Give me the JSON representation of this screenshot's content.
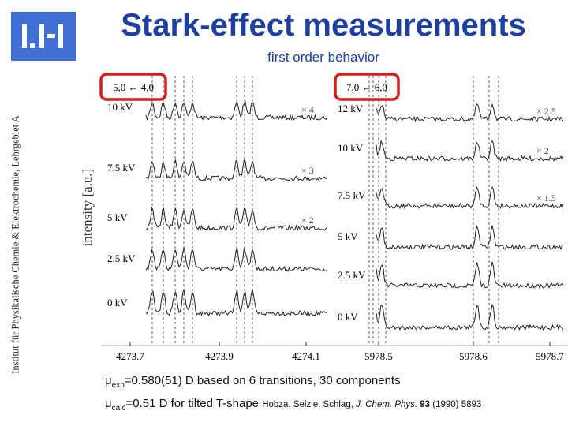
{
  "header": {
    "title": "Stark-effect measurements",
    "subtitle": "first order behavior"
  },
  "sidebar": "Institut für Physikalische Chemie & Elektrochemie, Lehrgebiet A",
  "figure": {
    "y_label": "intensity [a.u.]",
    "panels": [
      {
        "transition": "5,0 ← 4,0",
        "traces": [
          {
            "label": "10 kV",
            "scale": "× 4"
          },
          {
            "label": "7.5 kV",
            "scale": "× 3"
          },
          {
            "label": "5 kV",
            "scale": "× 2"
          },
          {
            "label": "2.5 kV"
          },
          {
            "label": "0 kV"
          }
        ],
        "x_ticks": [
          "4273.7",
          "4273.9",
          "4274.1"
        ]
      },
      {
        "transition": "7,0 ← 6,0",
        "traces": [
          {
            "label": "12 kV",
            "scale": "× 2.5"
          },
          {
            "label": "10 kV",
            "scale": "× 2"
          },
          {
            "label": "7.5 kV",
            "scale": "× 1.5"
          },
          {
            "label": "5 kV"
          },
          {
            "label": "2.5 kV"
          },
          {
            "label": "0 kV"
          }
        ],
        "x_ticks": [
          "5978.5",
          "5978.6",
          "5978.7"
        ]
      }
    ]
  },
  "footer": {
    "line1": {
      "symbol": "μ",
      "subscript": "exp",
      "text": "=0.580(51) D based on 6 transitions, 30 components"
    },
    "line2": {
      "symbol": "μ",
      "subscript": "calc",
      "text": "=0.51 D for tilted T-shape",
      "citation": {
        "authors": "Hobza, Selzle, Schlag, ",
        "journal": "J. Chem. Phys.",
        "volume": "93",
        "rest": " (1990) 5893"
      }
    }
  }
}
